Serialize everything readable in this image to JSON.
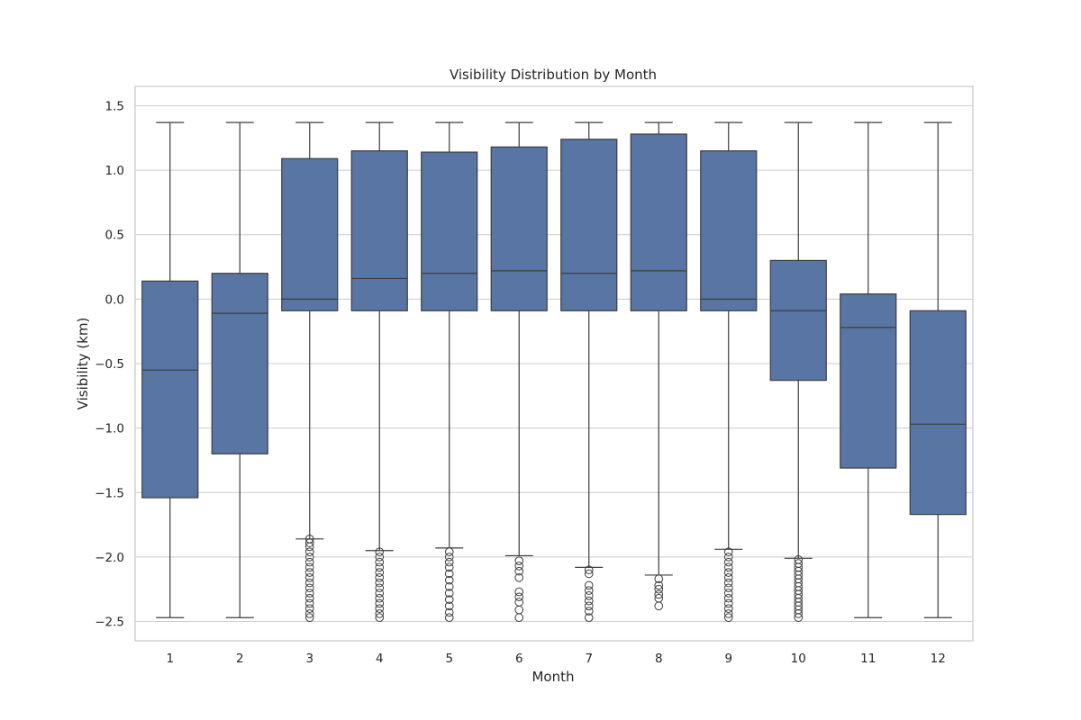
{
  "chart_data": {
    "type": "box",
    "title": "Visibility Distribution by Month",
    "xlabel": "Month",
    "ylabel": "Visibility (km)",
    "categories": [
      "1",
      "2",
      "3",
      "4",
      "5",
      "6",
      "7",
      "8",
      "9",
      "10",
      "11",
      "12"
    ],
    "ylim": [
      -2.65,
      1.65
    ],
    "yticks": [
      -2.5,
      -2.0,
      -1.5,
      -1.0,
      -0.5,
      0.0,
      0.5,
      1.0,
      1.5
    ],
    "ytick_labels": [
      "−2.5",
      "−2.0",
      "−1.5",
      "−1.0",
      "−0.5",
      "0.0",
      "0.5",
      "1.0",
      "1.5"
    ],
    "grid": true,
    "box_color": "#5875a4",
    "line_color": "#3d3d3d",
    "series": [
      {
        "category": "1",
        "whislo": -2.47,
        "q1": -1.54,
        "median": -0.55,
        "q3": 0.14,
        "whishi": 1.37,
        "fliers": []
      },
      {
        "category": "2",
        "whislo": -2.47,
        "q1": -1.2,
        "median": -0.11,
        "q3": 0.2,
        "whishi": 1.37,
        "fliers": []
      },
      {
        "category": "3",
        "whislo": -1.86,
        "q1": -0.09,
        "median": 0.0,
        "q3": 1.09,
        "whishi": 1.37,
        "fliers": [
          -1.86,
          -1.89,
          -1.92,
          -1.96,
          -2.0,
          -2.04,
          -2.08,
          -2.12,
          -2.16,
          -2.2,
          -2.24,
          -2.28,
          -2.32,
          -2.36,
          -2.4,
          -2.44,
          -2.47
        ]
      },
      {
        "category": "4",
        "whislo": -1.95,
        "q1": -0.09,
        "median": 0.16,
        "q3": 1.15,
        "whishi": 1.37,
        "fliers": [
          -1.96,
          -2.0,
          -2.04,
          -2.08,
          -2.12,
          -2.16,
          -2.2,
          -2.24,
          -2.28,
          -2.32,
          -2.36,
          -2.4,
          -2.44,
          -2.47
        ]
      },
      {
        "category": "5",
        "whislo": -1.93,
        "q1": -0.09,
        "median": 0.2,
        "q3": 1.14,
        "whishi": 1.37,
        "fliers": [
          -1.96,
          -2.0,
          -2.04,
          -2.08,
          -2.13,
          -2.18,
          -2.23,
          -2.28,
          -2.33,
          -2.38,
          -2.43,
          -2.47
        ]
      },
      {
        "category": "6",
        "whislo": -1.99,
        "q1": -0.09,
        "median": 0.22,
        "q3": 1.18,
        "whishi": 1.37,
        "fliers": [
          -2.03,
          -2.07,
          -2.11,
          -2.16,
          -2.27,
          -2.31,
          -2.35,
          -2.41,
          -2.47
        ]
      },
      {
        "category": "7",
        "whislo": -2.08,
        "q1": -0.09,
        "median": 0.2,
        "q3": 1.24,
        "whishi": 1.37,
        "fliers": [
          -2.1,
          -2.13,
          -2.22,
          -2.26,
          -2.3,
          -2.34,
          -2.38,
          -2.42,
          -2.47
        ]
      },
      {
        "category": "8",
        "whislo": -2.14,
        "q1": -0.09,
        "median": 0.22,
        "q3": 1.28,
        "whishi": 1.37,
        "fliers": [
          -2.17,
          -2.22,
          -2.25,
          -2.29,
          -2.32,
          -2.38
        ]
      },
      {
        "category": "9",
        "whislo": -1.94,
        "q1": -0.09,
        "median": 0.0,
        "q3": 1.15,
        "whishi": 1.37,
        "fliers": [
          -1.96,
          -2.0,
          -2.04,
          -2.08,
          -2.12,
          -2.16,
          -2.2,
          -2.24,
          -2.28,
          -2.32,
          -2.36,
          -2.4,
          -2.44,
          -2.47
        ]
      },
      {
        "category": "10",
        "whislo": -2.01,
        "q1": -0.63,
        "median": -0.09,
        "q3": 0.3,
        "whishi": 1.37,
        "fliers": [
          -2.02,
          -2.05,
          -2.08,
          -2.11,
          -2.14,
          -2.17,
          -2.2,
          -2.23,
          -2.26,
          -2.29,
          -2.32,
          -2.35,
          -2.38,
          -2.41,
          -2.44,
          -2.47
        ]
      },
      {
        "category": "11",
        "whislo": -2.47,
        "q1": -1.31,
        "median": -0.22,
        "q3": 0.04,
        "whishi": 1.37,
        "fliers": []
      },
      {
        "category": "12",
        "whislo": -2.47,
        "q1": -1.67,
        "median": -0.97,
        "q3": -0.09,
        "whishi": 1.37,
        "fliers": []
      }
    ]
  }
}
